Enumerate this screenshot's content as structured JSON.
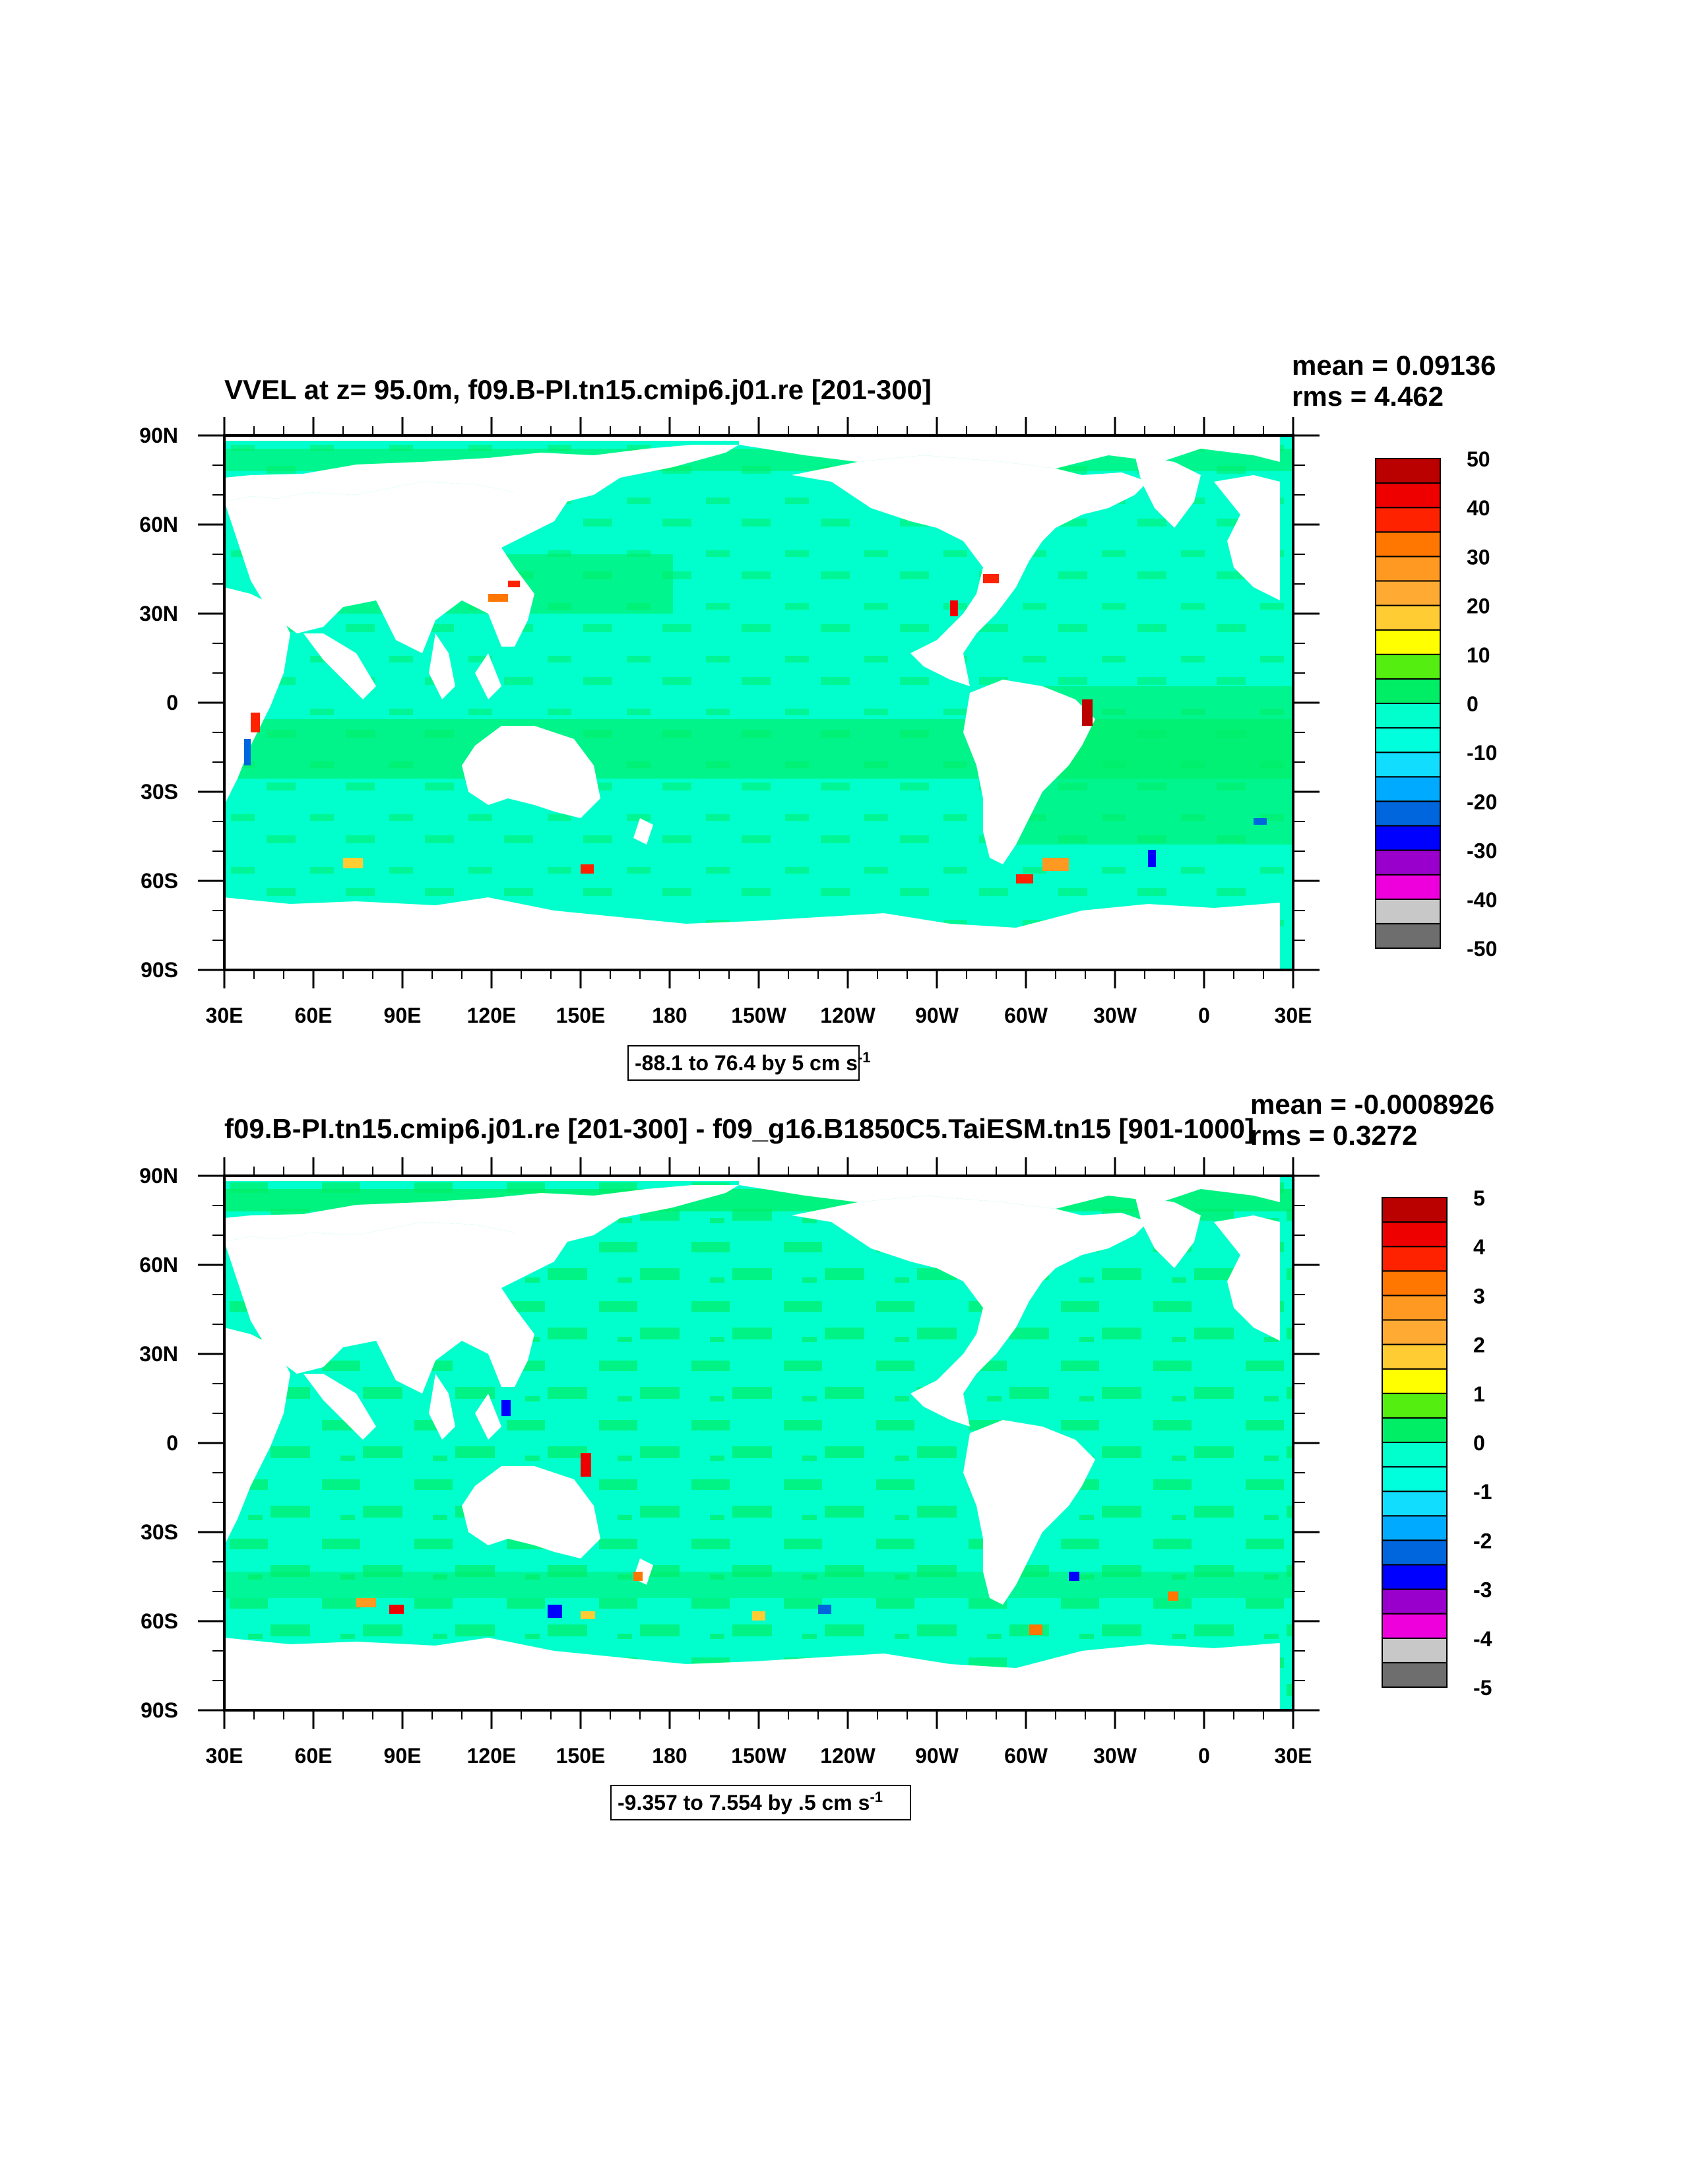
{
  "colors": {
    "ocean_cyan": "#00ffcc",
    "ocean_green": "#00ee66",
    "land": "#ffffff",
    "palette": [
      "#6e6e6e",
      "#c8c8c8",
      "#ee00dd",
      "#9900cc",
      "#0000ff",
      "#0066dd",
      "#00aaff",
      "#11ddff",
      "#00ffdd",
      "#00ee66",
      "#55ee11",
      "#ffff00",
      "#ffcc33",
      "#ffaa33",
      "#ff9922",
      "#ff7700",
      "#ff2200",
      "#ee0000",
      "#bb0000"
    ]
  },
  "chart_data": [
    {
      "type": "heatmap",
      "title": "VVEL at z=  95.0m, f09.B-PI.tn15.cmip6.j01.re [201-300]",
      "stats": {
        "mean": "mean = 0.09136",
        "rms": "rms = 4.462"
      },
      "x_ticks": [
        "30E",
        "60E",
        "90E",
        "120E",
        "150E",
        "180",
        "150W",
        "120W",
        "90W",
        "60W",
        "30W",
        "0",
        "30E"
      ],
      "y_ticks": [
        "90N",
        "60N",
        "30N",
        "0",
        "30S",
        "60S",
        "90S"
      ],
      "xlim": [
        "30E",
        "30E"
      ],
      "ylim": [
        "90S",
        "90N"
      ],
      "range_label": {
        "text": "-88.1 to 76.4 by 5 cm s",
        "sup": "-1"
      },
      "colorbar": {
        "labels": [
          "50",
          "40",
          "30",
          "20",
          "10",
          "0",
          "-10",
          "-20",
          "-30",
          "-40",
          "-50"
        ],
        "min": -50,
        "max": 50,
        "step": 5
      }
    },
    {
      "type": "heatmap",
      "title": "f09.B-PI.tn15.cmip6.j01.re [201-300] - f09_g16.B1850C5.TaiESM.tn15 [901-1000]",
      "stats": {
        "mean": "mean = -0.0008926",
        "rms": "rms = 0.3272"
      },
      "x_ticks": [
        "30E",
        "60E",
        "90E",
        "120E",
        "150E",
        "180",
        "150W",
        "120W",
        "90W",
        "60W",
        "30W",
        "0",
        "30E"
      ],
      "y_ticks": [
        "90N",
        "60N",
        "30N",
        "0",
        "30S",
        "60S",
        "90S"
      ],
      "xlim": [
        "30E",
        "30E"
      ],
      "ylim": [
        "90S",
        "90N"
      ],
      "range_label": {
        "text": "-9.357 to 7.554 by .5 cm s",
        "sup": "-1"
      },
      "colorbar": {
        "labels": [
          "5",
          "4",
          "3",
          "2",
          "1",
          "0",
          "-1",
          "-2",
          "-3",
          "-4",
          "-5"
        ],
        "min": -5,
        "max": 5,
        "step": 0.5
      }
    }
  ]
}
